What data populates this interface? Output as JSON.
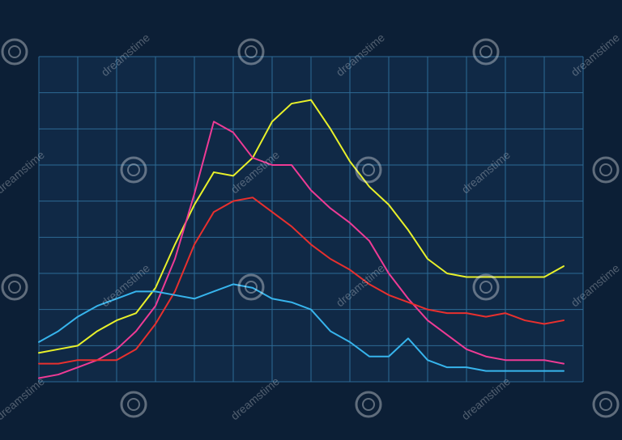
{
  "chart_data": {
    "type": "line",
    "x": [
      0,
      0.5,
      1,
      1.5,
      2,
      2.5,
      3,
      3.5,
      4,
      4.5,
      5,
      5.5,
      6,
      6.5,
      7,
      7.5,
      8,
      8.5,
      9,
      9.5,
      10,
      10.5,
      11,
      11.5,
      12,
      12.5,
      13,
      13.5
    ],
    "series": [
      {
        "color": "#e8f02a",
        "values": [
          0.8,
          0.9,
          1.0,
          1.4,
          1.7,
          1.9,
          2.6,
          3.8,
          4.9,
          5.8,
          5.7,
          6.2,
          7.2,
          7.7,
          7.8,
          7.0,
          6.1,
          5.4,
          4.9,
          4.2,
          3.4,
          3.0,
          2.9,
          2.9,
          2.9,
          2.9,
          2.9,
          3.2
        ]
      },
      {
        "color": "#ee3b95",
        "values": [
          0.1,
          0.2,
          0.4,
          0.6,
          0.9,
          1.4,
          2.1,
          3.4,
          5.2,
          7.2,
          6.9,
          6.2,
          6.0,
          6.0,
          5.3,
          4.8,
          4.4,
          3.9,
          3.0,
          2.3,
          1.7,
          1.3,
          0.9,
          0.7,
          0.6,
          0.6,
          0.6,
          0.5
        ]
      },
      {
        "color": "#e8302e",
        "values": [
          0.5,
          0.5,
          0.6,
          0.6,
          0.6,
          0.9,
          1.6,
          2.5,
          3.8,
          4.7,
          5.0,
          5.1,
          4.7,
          4.3,
          3.8,
          3.4,
          3.1,
          2.7,
          2.4,
          2.2,
          2.0,
          1.9,
          1.9,
          1.8,
          1.9,
          1.7,
          1.6,
          1.7
        ]
      },
      {
        "color": "#37b4ec",
        "values": [
          1.1,
          1.4,
          1.8,
          2.1,
          2.3,
          2.5,
          2.5,
          2.4,
          2.3,
          2.5,
          2.7,
          2.6,
          2.3,
          2.2,
          2.0,
          1.4,
          1.1,
          0.7,
          0.7,
          1.2,
          0.6,
          0.4,
          0.4,
          0.3,
          0.3,
          0.3,
          0.3,
          0.3
        ]
      }
    ],
    "xlim": [
      0,
      14
    ],
    "ylim": [
      0,
      9
    ],
    "xticks": [
      0,
      1,
      2,
      3,
      4,
      5,
      6,
      7,
      8,
      9,
      10,
      11,
      12,
      13,
      14
    ],
    "yticks": [
      0,
      1,
      2,
      3,
      4,
      5,
      6,
      7,
      8,
      9
    ],
    "grid": true
  },
  "watermark": "dreamstime"
}
